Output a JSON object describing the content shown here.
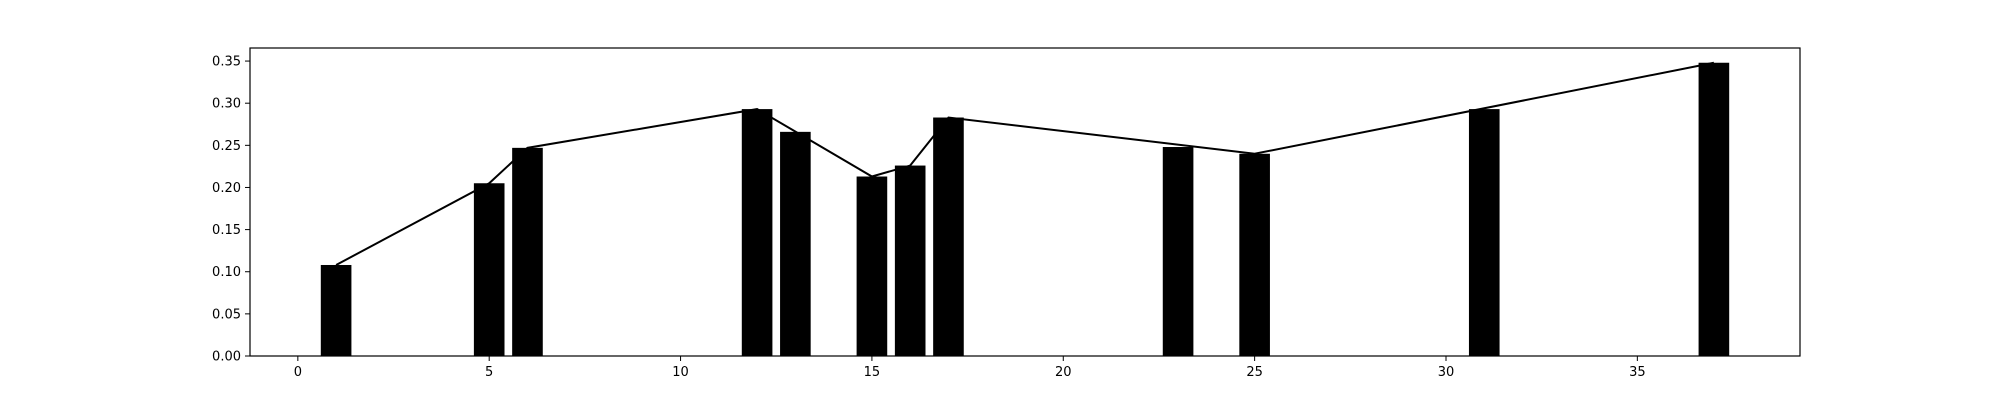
{
  "chart_data": {
    "type": "bar",
    "title": "",
    "xlabel": "",
    "ylabel": "",
    "xlim": [
      -1.25,
      39.25
    ],
    "ylim": [
      0,
      0.3655
    ],
    "grid": false,
    "legend": "none",
    "x_ticks": [
      0,
      5,
      10,
      15,
      20,
      25,
      30,
      35
    ],
    "x_tick_labels": [
      "0",
      "5",
      "10",
      "15",
      "20",
      "25",
      "30",
      "35"
    ],
    "y_ticks": [
      0,
      0.05,
      0.1,
      0.15,
      0.2,
      0.25,
      0.3,
      0.35
    ],
    "y_tick_labels": [
      "0.00",
      "0.05",
      "0.10",
      "0.15",
      "0.20",
      "0.25",
      "0.30",
      "0.35"
    ],
    "bar_color": "#000000",
    "line_color": "#000000",
    "series": [
      {
        "name": "bars",
        "type": "bar",
        "x": [
          1,
          5,
          6,
          12,
          13,
          15,
          16,
          17,
          23,
          25,
          31,
          37
        ],
        "values": [
          0.108,
          0.205,
          0.247,
          0.293,
          0.266,
          0.213,
          0.226,
          0.283,
          0.248,
          0.24,
          0.293,
          0.348
        ]
      },
      {
        "name": "line",
        "type": "line",
        "x": [
          1,
          5,
          6,
          12,
          15,
          16,
          17,
          25,
          37
        ],
        "values": [
          0.108,
          0.205,
          0.247,
          0.293,
          0.213,
          0.226,
          0.283,
          0.24,
          0.348
        ]
      }
    ]
  }
}
